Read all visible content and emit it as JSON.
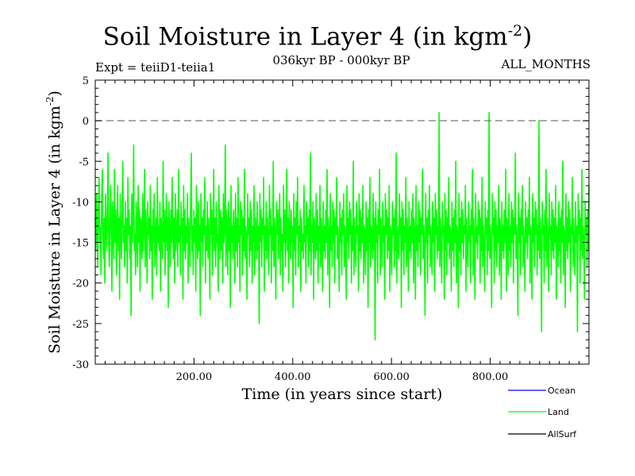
{
  "chart_data": {
    "type": "line",
    "title": "Soil Moisture in Layer 4 (in kgm",
    "title_sup": "-2",
    "title_end": ")",
    "subtitle_left": "Expt = teiiD1-teiia1",
    "subtitle_center": "036kyr BP - 000kyr BP",
    "subtitle_right": "ALL_MONTHS",
    "xlabel": "Time (in years since start)",
    "ylabel": "Soil Moisture in Layer 4 (in kgm",
    "ylabel_sup": "-2",
    "ylabel_end": ")",
    "xlim": [
      0,
      1000
    ],
    "ylim": [
      -30,
      5
    ],
    "x_ticks": [
      "200.00",
      "400.00",
      "600.00",
      "800.00"
    ],
    "x_tick_values": [
      200,
      400,
      600,
      800
    ],
    "y_ticks": [
      "5",
      "0",
      "-5",
      "-10",
      "-15",
      "-20",
      "-25",
      "-30"
    ],
    "y_tick_values": [
      5,
      0,
      -5,
      -10,
      -15,
      -20,
      -25,
      -30
    ],
    "reference_line": 0,
    "series": [
      {
        "name": "Ocean",
        "color": "#0000ff",
        "values": []
      },
      {
        "name": "Land",
        "color": "#00ff00",
        "x_start": 0,
        "x_end": 1000,
        "mean": -13.5,
        "range": [
          -27.3,
          1.2
        ],
        "values": [
          -12,
          -16,
          -9,
          -14,
          -18,
          -11,
          -7,
          -15,
          -13,
          -19,
          -10,
          -6,
          -14,
          -17,
          -12,
          -20,
          -9,
          -13,
          -16,
          -11,
          -4,
          -15,
          -18,
          -12,
          -8,
          -14,
          -21,
          -10,
          -13,
          -17,
          -6,
          -15,
          -11,
          -19,
          -13,
          -8,
          -16,
          -12,
          -22,
          -9,
          -14,
          -17,
          -11,
          -5,
          -15,
          -13,
          -18,
          -10,
          -16,
          -12,
          -20,
          -7,
          -14,
          -11,
          -17,
          -13,
          -24,
          -9,
          -15,
          -12,
          -3,
          -16,
          -14,
          -19,
          -10,
          -13,
          -18,
          -8,
          -15,
          -11,
          -21,
          -12,
          -14,
          -17,
          -9,
          -16,
          -13,
          -6,
          -18,
          -11,
          -15,
          -20,
          -10,
          -14,
          -12,
          -17,
          -8,
          -16,
          -13,
          -22,
          -11,
          -15,
          -9,
          -18,
          -14,
          -12,
          -19,
          -7,
          -15,
          -13,
          -16,
          -10,
          -21,
          -12,
          -14,
          -17,
          -5,
          -15,
          -11,
          -19,
          -13,
          -9,
          -16,
          -12,
          -23,
          -10,
          -14,
          -18,
          -11,
          -15,
          -7,
          -13,
          -17,
          -12,
          -20,
          -9,
          -16,
          -14,
          -11,
          -18,
          -6,
          -15,
          -13,
          -19,
          -10,
          -14,
          -12,
          -22,
          -8,
          -16,
          -11,
          -17,
          -13,
          -15,
          -9,
          -20,
          -12,
          -14,
          -18,
          -10,
          -4,
          -16,
          -13,
          -19,
          -11,
          -15,
          -12,
          -21,
          -8,
          -14,
          -17,
          -10,
          -16,
          -13,
          -24,
          -9,
          -15,
          -12,
          -18,
          -11,
          -14,
          -7,
          -20,
          -13,
          -16,
          -10,
          -17,
          -12,
          -15,
          -22,
          -9,
          -14,
          -11,
          -19,
          -13,
          -6,
          -16,
          -12,
          -18,
          -10,
          -15,
          -14,
          -21,
          -8,
          -13,
          -17,
          -11,
          -16,
          -12,
          -20,
          -9,
          -15,
          -13,
          -3,
          -18,
          -11,
          -14,
          -19,
          -10,
          -16,
          -12,
          -23,
          -8,
          -15,
          -13,
          -17,
          -11,
          -14,
          -20,
          -9,
          -16,
          -12,
          -18,
          -7,
          -15,
          -13,
          -21,
          -10,
          -14,
          -11,
          -19,
          -12,
          -16,
          -6,
          -17,
          -13,
          -15,
          -22,
          -9,
          -14,
          -12,
          -18,
          -10,
          -16,
          -11,
          -20,
          -13,
          -15,
          -8,
          -19,
          -12,
          -14,
          -17,
          -10,
          -16,
          -13,
          -25,
          -9,
          -15,
          -11,
          -18,
          -12,
          -14,
          -7,
          -21,
          -13,
          -16,
          -10,
          -17,
          -12,
          -15,
          -19,
          -8,
          -14,
          -11,
          -20,
          -13,
          -16,
          -5,
          -18,
          -12,
          -15,
          -22,
          -10,
          -14,
          -11,
          -17,
          -13,
          -9,
          -19,
          -12,
          -16,
          -14,
          -21,
          -8,
          -15,
          -11,
          -18,
          -13,
          -6,
          -16,
          -12,
          -20,
          -10,
          -14,
          -17,
          -11,
          -15,
          -13,
          -23,
          -9,
          -16,
          -12,
          -19,
          -10,
          -14,
          -7,
          -18,
          -13,
          -15,
          -11,
          -21,
          -12,
          -16,
          -14,
          -17,
          -8,
          -15,
          -13,
          -20,
          -10,
          -14,
          -12,
          -18,
          -11,
          -16,
          -4,
          -19,
          -13,
          -15,
          -10,
          -22,
          -12,
          -14,
          -17,
          -9,
          -16,
          -11,
          -20,
          -13,
          -15,
          -8,
          -18,
          -12,
          -14,
          -21,
          -10,
          -16,
          -13,
          -17,
          -11,
          -15,
          -6,
          -19,
          -12,
          -14,
          -23,
          -9,
          -16,
          -13,
          -18,
          -10,
          -15,
          -11,
          -20,
          -12,
          -14,
          -7,
          -17,
          -13,
          -16,
          -21,
          -10,
          -15,
          -12,
          -19,
          -11,
          -14,
          -9,
          -18,
          -13,
          -16,
          -22,
          -8,
          -15,
          -12,
          -17,
          -10,
          -14,
          -11,
          -20,
          -13,
          -16,
          -5,
          -19,
          -12,
          -15,
          -18,
          -10,
          -14,
          -13,
          -21,
          -9,
          -16,
          -11,
          -17,
          -12,
          -15,
          -8,
          -20,
          -13,
          -14,
          -19,
          -10,
          -16,
          -12,
          -23,
          -11,
          -15,
          -7,
          -18,
          -13,
          -14,
          -17,
          -9,
          -16,
          -12,
          -27,
          -10,
          -15,
          -13,
          -20,
          -11,
          -14,
          -6,
          -19,
          -12,
          -16,
          -18,
          -10,
          -15,
          -13,
          -22,
          -9,
          -14,
          -11,
          -17,
          -12,
          -16,
          -8,
          -21,
          -13,
          -15,
          -19,
          -10,
          -14,
          -12,
          -18,
          -11,
          -16,
          -4,
          -20,
          -13,
          -15,
          -17,
          -9,
          -14,
          -12,
          -23,
          -10,
          -16,
          -11,
          -19,
          -13,
          -15,
          -7,
          -18,
          -12,
          -14,
          -21,
          -10,
          -16,
          -13,
          -17,
          -11,
          -15,
          -9,
          -20,
          -12,
          -14,
          -22,
          -8,
          -16,
          -13,
          -18,
          -10,
          -15,
          -11,
          -19,
          -12,
          -14,
          -6,
          -17,
          -13,
          -16,
          -24,
          -9,
          -15,
          -12,
          -20,
          -11,
          -14,
          -8,
          -18,
          -13,
          -16,
          -19,
          -10,
          -15,
          -12,
          -21,
          -9,
          -14,
          -11,
          -17,
          -13,
          -16,
          1,
          -18,
          -12,
          -15,
          -20,
          -10,
          -14,
          -13,
          -22,
          -9,
          -16,
          -11,
          -19,
          -12,
          -15,
          -7,
          -17,
          -13,
          -14,
          -21,
          -10,
          -16,
          -12,
          -18,
          -11,
          -15,
          -5,
          -20,
          -13,
          -14,
          -23,
          -9,
          -16,
          -12,
          -19,
          -10,
          -15,
          -11,
          -17,
          -13,
          -14,
          -8,
          -21,
          -12,
          -16,
          -18,
          -10,
          -15,
          -13,
          -20,
          -11,
          -14,
          -6,
          -19,
          -12,
          -16,
          -22,
          -9,
          -15,
          -13,
          -17,
          -10,
          -14,
          -11,
          -20,
          -12,
          -16,
          -7,
          -18,
          -13,
          -15,
          -21,
          -10,
          -14,
          -12,
          -19,
          -11,
          -16,
          1,
          -17,
          -13,
          -15,
          -23,
          -9,
          -14,
          -12,
          -20,
          -10,
          -16,
          -11,
          -18,
          -13,
          -15,
          -8,
          -19,
          -12,
          -14,
          -22,
          -10,
          -16,
          -13,
          -17,
          -11,
          -15,
          -6,
          -21,
          -12,
          -14,
          -19,
          -9,
          -16,
          -13,
          -18,
          -10,
          -15,
          -11,
          -20,
          -12,
          -14,
          -4,
          -17,
          -13,
          -16,
          -24,
          -9,
          -15,
          -12,
          -19,
          -11,
          -14,
          -8,
          -18,
          -13,
          -16,
          -21,
          -10,
          -15,
          -12,
          -17,
          -11,
          -14,
          -7,
          -20,
          -13,
          -16,
          -22,
          -9,
          -15,
          -12,
          -18,
          -10,
          -14,
          -11,
          -19,
          -13,
          -16,
          0,
          -17,
          -12,
          -15,
          -26,
          -10,
          -14,
          -13,
          -20,
          -11,
          -16,
          -6,
          -18,
          -12,
          -15,
          -21,
          -9,
          -14,
          -13,
          -19,
          -10,
          -16,
          -11,
          -17,
          -12,
          -15,
          -8,
          -22,
          -13,
          -14,
          -18,
          -10,
          -16,
          -12,
          -20,
          -11,
          -15,
          -5,
          -19,
          -13,
          -14,
          -23,
          -9,
          -16,
          -12,
          -17,
          -10,
          -15,
          -11,
          -21,
          -13,
          -14,
          -7,
          -18,
          -12,
          -16,
          -19,
          -10,
          -15,
          -13,
          -26,
          -9,
          -14,
          -11,
          -20,
          -12,
          -16,
          -6,
          -17,
          -13,
          -15,
          -22,
          -10,
          -14,
          -12,
          -18,
          -11,
          -16,
          -8
        ]
      },
      {
        "name": "AllSurf",
        "color": "#000000",
        "values": []
      }
    ],
    "grid": false,
    "legend_position": "bottom-right"
  }
}
